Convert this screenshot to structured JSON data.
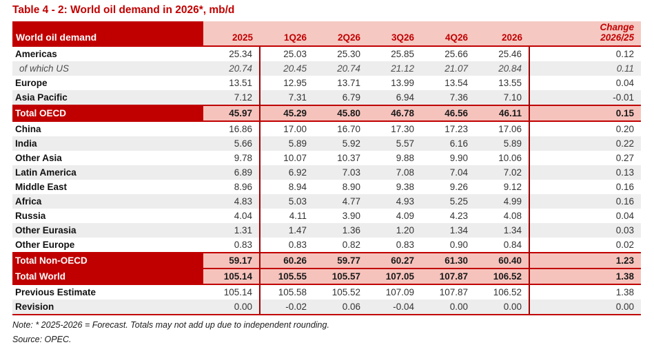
{
  "title": "Table 4 - 2: World oil demand in 2026*, mb/d",
  "colors": {
    "red": "#C00000",
    "pink_header": "#F5C8C2",
    "pink_total": "#F6C3BC",
    "row_shade": "#EDEDED",
    "divider": "#A00000"
  },
  "table": {
    "header": {
      "label": "World oil demand",
      "columns": [
        "2025",
        "1Q26",
        "2Q26",
        "3Q26",
        "4Q26",
        "2026"
      ],
      "change_line1": "Change",
      "change_line2": "2026/25"
    },
    "rows": [
      {
        "label": "Americas",
        "type": "plain",
        "shaded": false,
        "values": [
          "25.34",
          "25.03",
          "25.30",
          "25.85",
          "25.66",
          "25.46"
        ],
        "change": "0.12"
      },
      {
        "label": "of which US",
        "type": "italic",
        "shaded": true,
        "values": [
          "20.74",
          "20.45",
          "20.74",
          "21.12",
          "21.07",
          "20.84"
        ],
        "change": "0.11"
      },
      {
        "label": "Europe",
        "type": "plain",
        "shaded": false,
        "values": [
          "13.51",
          "12.95",
          "13.71",
          "13.99",
          "13.54",
          "13.55"
        ],
        "change": "0.04"
      },
      {
        "label": "Asia Pacific",
        "type": "plain",
        "shaded": true,
        "values": [
          "7.12",
          "7.31",
          "6.79",
          "6.94",
          "7.36",
          "7.10"
        ],
        "change": "-0.01"
      },
      {
        "label": "Total OECD",
        "type": "total",
        "shaded": false,
        "values": [
          "45.97",
          "45.29",
          "45.80",
          "46.78",
          "46.56",
          "46.11"
        ],
        "change": "0.15"
      },
      {
        "label": "China",
        "type": "plain",
        "shaded": false,
        "values": [
          "16.86",
          "17.00",
          "16.70",
          "17.30",
          "17.23",
          "17.06"
        ],
        "change": "0.20"
      },
      {
        "label": "India",
        "type": "plain",
        "shaded": true,
        "values": [
          "5.66",
          "5.89",
          "5.92",
          "5.57",
          "6.16",
          "5.89"
        ],
        "change": "0.22"
      },
      {
        "label": "Other Asia",
        "type": "plain",
        "shaded": false,
        "values": [
          "9.78",
          "10.07",
          "10.37",
          "9.88",
          "9.90",
          "10.06"
        ],
        "change": "0.27"
      },
      {
        "label": "Latin America",
        "type": "plain",
        "shaded": true,
        "values": [
          "6.89",
          "6.92",
          "7.03",
          "7.08",
          "7.04",
          "7.02"
        ],
        "change": "0.13"
      },
      {
        "label": "Middle East",
        "type": "plain",
        "shaded": false,
        "values": [
          "8.96",
          "8.94",
          "8.90",
          "9.38",
          "9.26",
          "9.12"
        ],
        "change": "0.16"
      },
      {
        "label": "Africa",
        "type": "plain",
        "shaded": true,
        "values": [
          "4.83",
          "5.03",
          "4.77",
          "4.93",
          "5.25",
          "4.99"
        ],
        "change": "0.16"
      },
      {
        "label": "Russia",
        "type": "plain",
        "shaded": false,
        "values": [
          "4.04",
          "4.11",
          "3.90",
          "4.09",
          "4.23",
          "4.08"
        ],
        "change": "0.04"
      },
      {
        "label": "Other Eurasia",
        "type": "plain",
        "shaded": true,
        "values": [
          "1.31",
          "1.47",
          "1.36",
          "1.20",
          "1.34",
          "1.34"
        ],
        "change": "0.03"
      },
      {
        "label": "Other Europe",
        "type": "plain",
        "shaded": false,
        "values": [
          "0.83",
          "0.83",
          "0.82",
          "0.83",
          "0.90",
          "0.84"
        ],
        "change": "0.02"
      },
      {
        "label": "Total Non-OECD",
        "type": "total",
        "shaded": false,
        "values": [
          "59.17",
          "60.26",
          "59.77",
          "60.27",
          "61.30",
          "60.40"
        ],
        "change": "1.23"
      },
      {
        "label": "Total World",
        "type": "total",
        "shaded": false,
        "values": [
          "105.14",
          "105.55",
          "105.57",
          "107.05",
          "107.87",
          "106.52"
        ],
        "change": "1.38"
      },
      {
        "label": "Previous Estimate",
        "type": "plain",
        "shaded": false,
        "values": [
          "105.14",
          "105.58",
          "105.52",
          "107.09",
          "107.87",
          "106.52"
        ],
        "change": "1.38"
      },
      {
        "label": "Revision",
        "type": "plain",
        "shaded": true,
        "values": [
          "0.00",
          "-0.02",
          "0.06",
          "-0.04",
          "0.00",
          "0.00"
        ],
        "change": "0.00"
      }
    ]
  },
  "notes": {
    "note": "Note: * 2025-2026 = Forecast. Totals may not add up due to independent rounding.",
    "source": "Source: OPEC."
  }
}
